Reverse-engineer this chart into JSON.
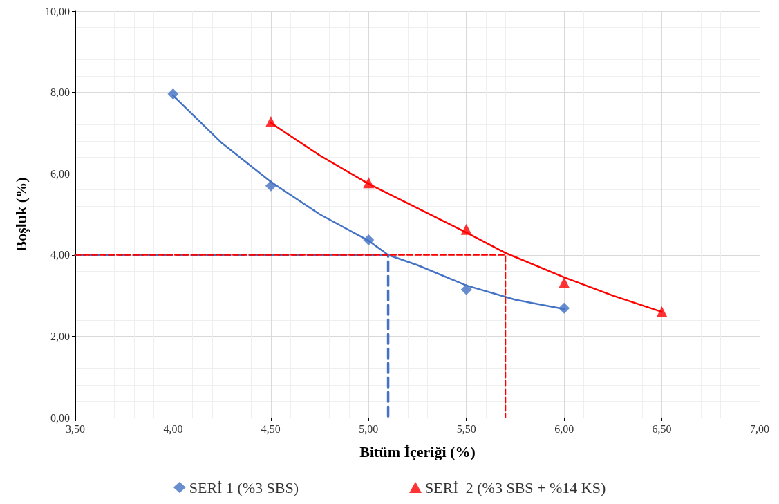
{
  "chart_data": {
    "type": "scatter",
    "xlabel": "Bitüm İçeriği (%)",
    "ylabel": "Boşluk (%)",
    "xlim": [
      3.5,
      7
    ],
    "ylim": [
      0,
      10
    ],
    "xticks": [
      {
        "value": 3.5,
        "label": "3,50"
      },
      {
        "value": 4,
        "label": "4,00"
      },
      {
        "value": 4.5,
        "label": "4,50"
      },
      {
        "value": 5,
        "label": "5,00"
      },
      {
        "value": 5.5,
        "label": "5,50"
      },
      {
        "value": 6,
        "label": "6,00"
      },
      {
        "value": 6.5,
        "label": "6,50"
      },
      {
        "value": 7,
        "label": "7,00"
      }
    ],
    "yticks": [
      {
        "value": 0,
        "label": "0,00"
      },
      {
        "value": 2,
        "label": "2,00"
      },
      {
        "value": 4,
        "label": "4,00"
      },
      {
        "value": 6,
        "label": "6,00"
      },
      {
        "value": 8,
        "label": "8,00"
      },
      {
        "value": 10,
        "label": "10,00"
      }
    ],
    "grid": true,
    "legend": "bottom",
    "series": [
      {
        "name": "SERİ 1 (%3 SBS)",
        "marker": "diamond",
        "color": "#4472c4",
        "x": [
          4,
          4.5,
          5,
          5.5,
          6
        ],
        "values": [
          7.96,
          5.7,
          4.37,
          3.15,
          2.69
        ]
      },
      {
        "name": "SERİ  2 (%3 SBS + %14 KS)",
        "marker": "triangle",
        "color": "#ff0000",
        "x": [
          4.5,
          5,
          5.5,
          6,
          6.5
        ],
        "values": [
          7.28,
          5.78,
          4.63,
          3.32,
          2.6
        ]
      },
      {
        "type": "line",
        "marker": "none",
        "line_style": "solid",
        "color": "#4472c4",
        "x": [
          4,
          4.25,
          4.5,
          4.75,
          5,
          5.1,
          5.25,
          5.5,
          5.75,
          6
        ],
        "values": [
          7.92,
          6.75,
          5.8,
          5.0,
          4.35,
          4.0,
          3.75,
          3.25,
          2.9,
          2.67
        ]
      },
      {
        "type": "line",
        "marker": "none",
        "line_style": "solid",
        "color": "#ff0000",
        "x": [
          4.5,
          4.75,
          5,
          5.25,
          5.5,
          5.7,
          5.75,
          6,
          6.25,
          6.5
        ],
        "values": [
          7.25,
          6.45,
          5.75,
          5.15,
          4.55,
          4.05,
          3.95,
          3.45,
          3.0,
          2.6
        ]
      },
      {
        "type": "line",
        "marker": "none",
        "line_style": "dashed",
        "color": "#4472c4",
        "x": [
          3.5,
          5.1,
          5.1
        ],
        "values": [
          4,
          4,
          0
        ]
      },
      {
        "type": "line",
        "marker": "none",
        "line_style": "dashed",
        "color": "#ff0000",
        "x": [
          3.5,
          5.7,
          5.7
        ],
        "values": [
          4,
          4,
          0
        ]
      }
    ]
  }
}
